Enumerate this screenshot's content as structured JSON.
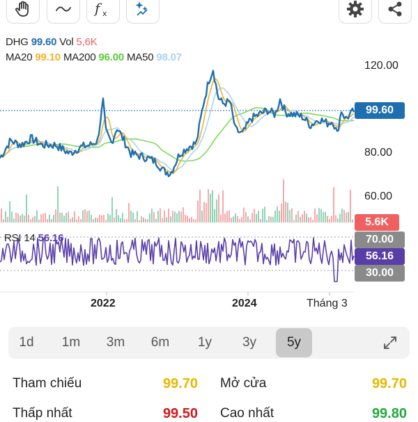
{
  "toolbar": {
    "left_tools": [
      "hand-icon",
      "line-draw-icon",
      "function-icon",
      "ai-sparkle-icon"
    ],
    "right_tools": [
      "gear-icon",
      "share-icon"
    ]
  },
  "legend": {
    "symbol": "DHG",
    "price": "99.60",
    "vol_label": "Vol",
    "vol": "5,6K",
    "ma20_label": "MA20",
    "ma20": "99.10",
    "ma200_label": "MA200",
    "ma200": "96.00",
    "ma50_label": "MA50",
    "ma50": "98.07"
  },
  "price_axis": [
    "120.00",
    "80.00",
    "60.00"
  ],
  "price_tag": "99.60",
  "vol_tag": "5.6K",
  "rsi": {
    "label": "RSI 14",
    "value": "56.16",
    "upper": "70.00",
    "lower": "30.00"
  },
  "x_axis": [
    "2022",
    "2024",
    "Tháng 3"
  ],
  "timeframes": [
    {
      "label": "1d",
      "active": false
    },
    {
      "label": "1m",
      "active": false
    },
    {
      "label": "3m",
      "active": false
    },
    {
      "label": "6m",
      "active": false
    },
    {
      "label": "1y",
      "active": false
    },
    {
      "label": "3y",
      "active": false
    },
    {
      "label": "5y",
      "active": true
    }
  ],
  "stats": {
    "ref_label": "Tham chiếu",
    "ref_value": "99.70",
    "open_label": "Mở cửa",
    "open_value": "99.70",
    "low_label": "Thấp nhất",
    "low_value": "99.50",
    "high_label": "Cao nhất",
    "high_value": "99.80"
  },
  "colors": {
    "price_line": "#1e6fb0",
    "ma20": "#f0b429",
    "ma200": "#7ed957",
    "ma50": "#a8d4f0",
    "vol_up": "#8fd3b6",
    "vol_down": "#f4a9a9",
    "rsi": "#5a3ea8",
    "vol_tag": "#f06060",
    "rsi_tag": "#5a3ea8",
    "grey_tag": "#8a8a8a",
    "ref": "#e6b800",
    "low": "#d11a1a",
    "high": "#1faa3a"
  }
}
